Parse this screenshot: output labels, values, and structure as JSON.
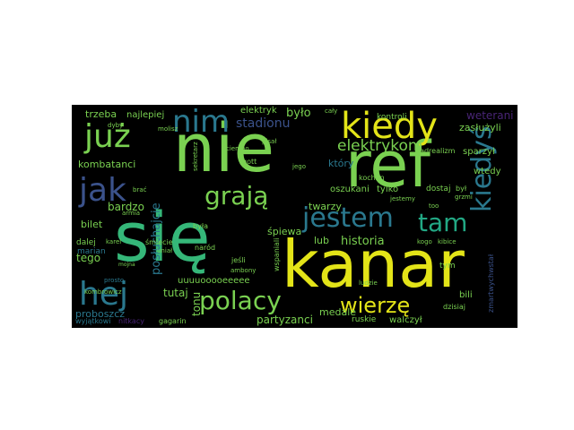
{
  "palette": {
    "background": "#ffffff",
    "cloud_background": "#000000",
    "colors": {
      "y": "#e3e418",
      "lg": "#7ad151",
      "g": "#35b779",
      "t": "#22a884",
      "c": "#2a788e",
      "b": "#3b528b",
      "p": "#482475",
      "d": "#440154"
    }
  },
  "words": [
    {
      "text": "nie",
      "color": "lg"
    },
    {
      "text": "ref",
      "color": "lg"
    },
    {
      "text": "się",
      "color": "g"
    },
    {
      "text": "kanar",
      "color": "y"
    },
    {
      "text": "kiedy",
      "color": "y"
    },
    {
      "text": "już",
      "color": "lg"
    },
    {
      "text": "nim",
      "color": "c"
    },
    {
      "text": "jak",
      "color": "b"
    },
    {
      "text": "grają",
      "color": "lg"
    },
    {
      "text": "jestem",
      "color": "c"
    },
    {
      "text": "tam",
      "color": "t"
    },
    {
      "text": "kiedyś",
      "color": "c"
    },
    {
      "text": "hej",
      "color": "c"
    },
    {
      "text": "polacy",
      "color": "lg"
    },
    {
      "text": "wierzę",
      "color": "y"
    },
    {
      "text": "elektrykom",
      "color": "lg"
    },
    {
      "text": "stadionu",
      "color": "b"
    },
    {
      "text": "było",
      "color": "lg"
    },
    {
      "text": "zasłużyli",
      "color": "lg"
    },
    {
      "text": "weterani",
      "color": "p"
    },
    {
      "text": "historia",
      "color": "lg"
    },
    {
      "text": "bardzo",
      "color": "lg"
    },
    {
      "text": "tego",
      "color": "lg"
    },
    {
      "text": "posłuchajcie",
      "color": "c"
    },
    {
      "text": "bilet",
      "color": "lg"
    },
    {
      "text": "tutaj",
      "color": "lg"
    },
    {
      "text": "tonu",
      "color": "lg"
    },
    {
      "text": "śpiewa",
      "color": "lg"
    },
    {
      "text": "twarzy",
      "color": "lg"
    },
    {
      "text": "medale",
      "color": "lg"
    },
    {
      "text": "lub",
      "color": "lg"
    },
    {
      "text": "ruskie",
      "color": "lg"
    },
    {
      "text": "walczył",
      "color": "lg"
    },
    {
      "text": "partyzanci",
      "color": "lg"
    },
    {
      "text": "proboszcz",
      "color": "c"
    },
    {
      "text": "marian",
      "color": "c"
    },
    {
      "text": "dalej",
      "color": "lg"
    },
    {
      "text": "kombatanci",
      "color": "lg"
    },
    {
      "text": "trzeba",
      "color": "lg"
    },
    {
      "text": "najlepiej",
      "color": "lg"
    },
    {
      "text": "elektryk",
      "color": "lg"
    },
    {
      "text": "kontroli",
      "color": "lg"
    },
    {
      "text": "wtedy",
      "color": "lg"
    },
    {
      "text": "sparzył",
      "color": "lg"
    },
    {
      "text": "hadrealizm",
      "color": "lg"
    },
    {
      "text": "oszukani",
      "color": "lg"
    },
    {
      "text": "tylko",
      "color": "lg"
    },
    {
      "text": "który",
      "color": "c"
    },
    {
      "text": "kochan",
      "color": "lg"
    },
    {
      "text": "dostaj",
      "color": "lg"
    },
    {
      "text": "uuuuooooeeeee",
      "color": "lg"
    },
    {
      "text": "bili",
      "color": "lg"
    },
    {
      "text": "dzisiaj",
      "color": "lg"
    },
    {
      "text": "gagarin",
      "color": "lg"
    },
    {
      "text": "wyjątkowi",
      "color": "c"
    },
    {
      "text": "nitkacy",
      "color": "p"
    },
    {
      "text": "kombrowicz",
      "color": "lg"
    },
    {
      "text": "karel",
      "color": "lg"
    },
    {
      "text": "dyby",
      "color": "lg"
    },
    {
      "text": "brać",
      "color": "lg"
    },
    {
      "text": "była",
      "color": "lg"
    },
    {
      "text": "naród",
      "color": "lg"
    },
    {
      "text": "śmiecie",
      "color": "lg"
    },
    {
      "text": "uniał",
      "color": "lg"
    },
    {
      "text": "jeśli",
      "color": "lg"
    },
    {
      "text": "ambony",
      "color": "lg"
    },
    {
      "text": "wspaniali",
      "color": "lg"
    },
    {
      "text": "gott",
      "color": "lg"
    },
    {
      "text": "pisał",
      "color": "lg"
    },
    {
      "text": "tym",
      "color": "lg"
    },
    {
      "text": "był",
      "color": "lg"
    },
    {
      "text": "too",
      "color": "lg"
    },
    {
      "text": "jego",
      "color": "lg"
    },
    {
      "text": "kogo",
      "color": "lg"
    },
    {
      "text": "kibice",
      "color": "lg"
    },
    {
      "text": "grzmi",
      "color": "lg"
    },
    {
      "text": "zmartwychwstał",
      "color": "b"
    },
    {
      "text": "armia",
      "color": "lg"
    },
    {
      "text": "mojna",
      "color": "lg"
    },
    {
      "text": "prosto",
      "color": "c"
    },
    {
      "text": "sekretarz",
      "color": "lg"
    },
    {
      "text": "molisz",
      "color": "lg"
    },
    {
      "text": "jestemy",
      "color": "lg"
    },
    {
      "text": "cały",
      "color": "lg"
    },
    {
      "text": "ciemno",
      "color": "lg"
    },
    {
      "text": "ludzie",
      "color": "lg"
    }
  ]
}
